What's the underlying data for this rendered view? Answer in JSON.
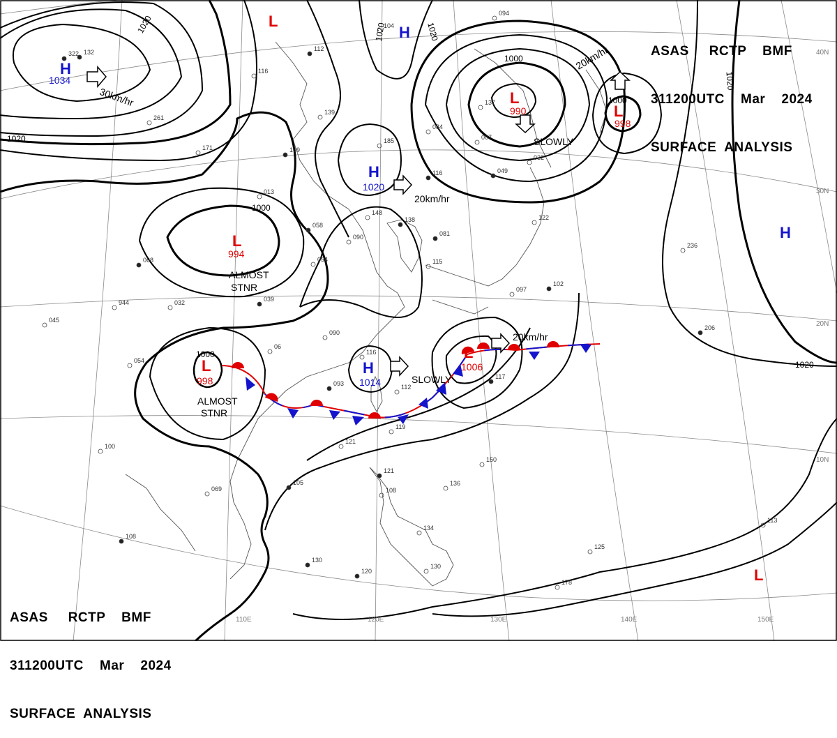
{
  "header": {
    "line1": "ASAS     RCTP    BMF",
    "line2": "311200UTC    Mar    2024",
    "line3": "SURFACE  ANALYSIS"
  },
  "longitudes": [
    "110E",
    "120E",
    "130E",
    "140E",
    "150E"
  ],
  "latitudes": [
    "40N",
    "30N",
    "20N",
    "10N"
  ],
  "isobar_labels": [
    "1020",
    "1020",
    "1020",
    "1020",
    "1020",
    "1000",
    "1000",
    "1000",
    "1000",
    "1020"
  ],
  "pressure_centers": [
    {
      "type": "H",
      "value": "1034"
    },
    {
      "type": "L",
      "value": ""
    },
    {
      "type": "H",
      "value": ""
    },
    {
      "type": "L",
      "value": "990"
    },
    {
      "type": "L",
      "value": "998"
    },
    {
      "type": "L",
      "value": "994"
    },
    {
      "type": "H",
      "value": "1020"
    },
    {
      "type": "H",
      "value": ""
    },
    {
      "type": "L",
      "value": "998"
    },
    {
      "type": "H",
      "value": "1014"
    },
    {
      "type": "L",
      "value": "1006"
    },
    {
      "type": "L",
      "value": ""
    }
  ],
  "motion_labels": [
    "30km/hr",
    "20km/hr",
    "SLOWLY",
    "20km/hr",
    "SLOWLY",
    "20km/hr"
  ],
  "status_labels": {
    "stnr1_a": "ALMOST",
    "stnr1_b": "STNR",
    "stnr2_a": "ALMOST",
    "stnr2_b": "STNR"
  },
  "station_values": [
    "322",
    "261",
    "171",
    "109",
    "013",
    "139",
    "112",
    "116",
    "185",
    "116",
    "084",
    "007",
    "049",
    "032",
    "122",
    "081",
    "115",
    "148",
    "138",
    "090",
    "054",
    "039",
    "032",
    "944",
    "068",
    "045",
    "054",
    "058",
    "06",
    "090",
    "093",
    "116",
    "112",
    "117",
    "119",
    "121",
    "121",
    "108",
    "134",
    "130",
    "150",
    "136",
    "105",
    "069",
    "100",
    "108",
    "125",
    "113",
    "120",
    "130",
    "236",
    "206",
    "094",
    "104",
    "132",
    "137",
    "097",
    "102",
    "178"
  ],
  "colors": {
    "high": "#1414cc",
    "low": "#e00000",
    "warm_front": "#e00000",
    "cold_front": "#1414cc",
    "isobar": "#000000",
    "coast": "#555555"
  }
}
